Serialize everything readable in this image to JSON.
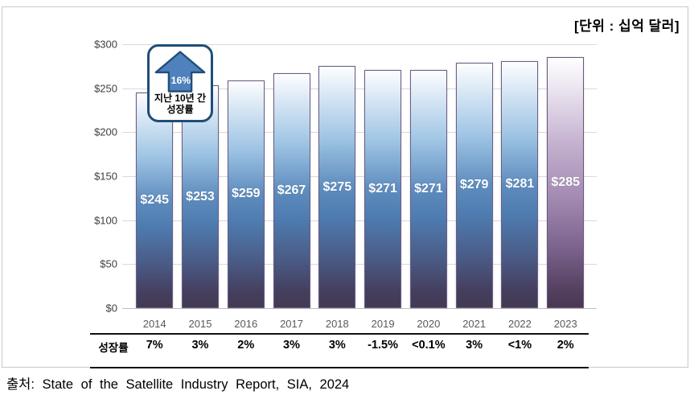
{
  "unit_label": "[단위 : 십억 달러]",
  "source_line": "출처: State of the Satellite Industry Report, SIA, 2024",
  "annotation": {
    "arrow_value": "16%",
    "line1": "지난 10년 간",
    "line2": "성장률"
  },
  "growth_table": {
    "header": "성장률"
  },
  "chart_data": {
    "type": "bar",
    "title": "",
    "unit": "십억 달러",
    "categories": [
      "2014",
      "2015",
      "2016",
      "2017",
      "2018",
      "2019",
      "2020",
      "2021",
      "2022",
      "2023"
    ],
    "values": [
      245,
      253,
      259,
      267,
      275,
      271,
      271,
      279,
      281,
      285
    ],
    "bar_labels": [
      "$245",
      "$253",
      "$259",
      "$267",
      "$275",
      "$271",
      "$271",
      "$279",
      "$281",
      "$285"
    ],
    "growth_rates": [
      "7%",
      "3%",
      "2%",
      "3%",
      "3%",
      "-1.5%",
      "<0.1%",
      "3%",
      "<1%",
      "2%"
    ],
    "y_ticks": [
      "$0",
      "$50",
      "$100",
      "$150",
      "$200",
      "$250",
      "$300"
    ],
    "y_tick_values": [
      0,
      50,
      100,
      150,
      200,
      250,
      300
    ],
    "ylim": [
      0,
      300
    ],
    "grid": true,
    "legend": "none",
    "annotation_text": "지난 10년 간 성장률 16%",
    "colors": {
      "bar_top": "#fdfeff",
      "bar_mid_blue": "#4e7cb0",
      "bar_bottom": "#433a52",
      "bar_2023_mid": "#a48cb3",
      "callout_border": "#1f4e79",
      "arrow_fill": "#4f81bd",
      "gridline": "#d9d9d9",
      "year_text": "#595959"
    }
  }
}
